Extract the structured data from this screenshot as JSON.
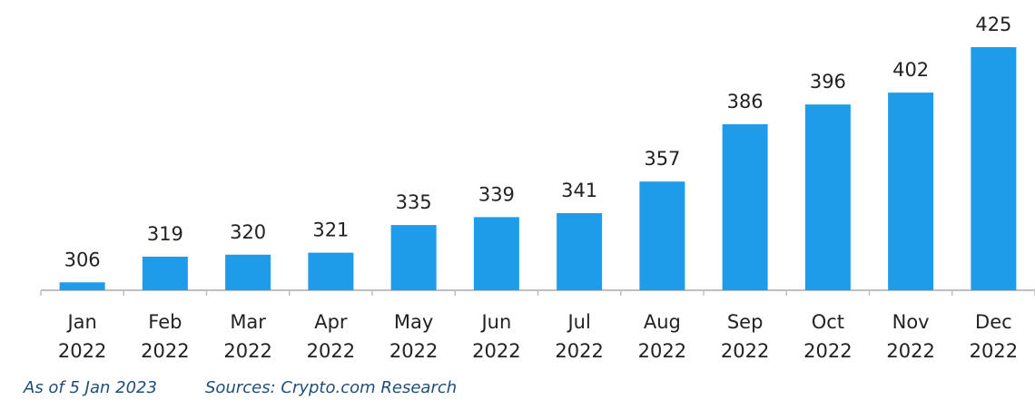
{
  "chart_data": {
    "type": "bar",
    "categories": [
      "Jan 2022",
      "Feb 2022",
      "Mar 2022",
      "Apr 2022",
      "May 2022",
      "Jun 2022",
      "Jul 2022",
      "Aug 2022",
      "Sep 2022",
      "Oct 2022",
      "Nov 2022",
      "Dec 2022"
    ],
    "category_lines": [
      [
        "Jan",
        "2022"
      ],
      [
        "Feb",
        "2022"
      ],
      [
        "Mar",
        "2022"
      ],
      [
        "Apr",
        "2022"
      ],
      [
        "May",
        "2022"
      ],
      [
        "Jun",
        "2022"
      ],
      [
        "Jul",
        "2022"
      ],
      [
        "Aug",
        "2022"
      ],
      [
        "Sep",
        "2022"
      ],
      [
        "Oct",
        "2022"
      ],
      [
        "Nov",
        "2022"
      ],
      [
        "Dec",
        "2022"
      ]
    ],
    "values": [
      306,
      319,
      320,
      321,
      335,
      339,
      341,
      357,
      386,
      396,
      402,
      425
    ],
    "title": "",
    "xlabel": "",
    "ylabel": "",
    "ylim": [
      302,
      425
    ],
    "data_labels": true,
    "grid": false,
    "bar_color": "#1e9be9",
    "axis_color": "#bfbfbf"
  },
  "footer": {
    "as_of": "As of 5 Jan 2023",
    "source": "Sources: Crypto.com Research"
  },
  "colors": {
    "label_text": "#222222",
    "footnote_text": "#1f4e79"
  }
}
